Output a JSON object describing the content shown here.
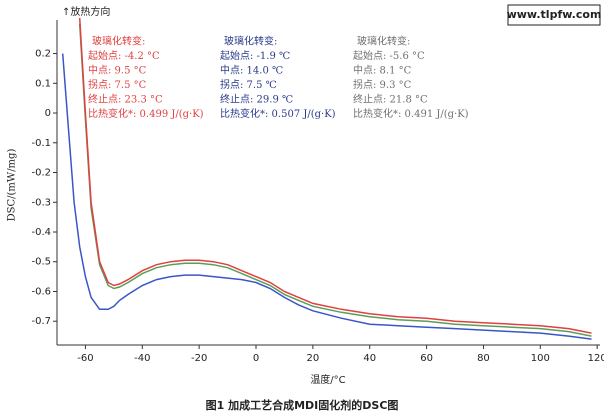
{
  "chart_data": {
    "type": "line",
    "direction_label": "↑放热方向",
    "watermark": "www.tlpfw.com",
    "y_label": "DSC/(mW/mg)",
    "x_label": "温度/°C",
    "caption": "图1 加成工艺合成MDI固化剂的DSC图",
    "xlim": [
      -70,
      121
    ],
    "ylim": [
      -0.78,
      0.37
    ],
    "xticks": [
      -60,
      -40,
      -20,
      0,
      20,
      40,
      60,
      80,
      100,
      120
    ],
    "yticks": [
      0.2,
      0.1,
      0,
      -0.1,
      -0.2,
      -0.3,
      -0.4,
      -0.5,
      -0.6,
      -0.7
    ],
    "grid": false,
    "x": [
      -68,
      -66,
      -64,
      -62,
      -60,
      -58,
      -55,
      -52,
      -50,
      -48,
      -45,
      -40,
      -35,
      -30,
      -25,
      -20,
      -15,
      -10,
      -5,
      0,
      5,
      10,
      15,
      20,
      30,
      40,
      50,
      60,
      70,
      80,
      90,
      100,
      110,
      118
    ],
    "series": [
      {
        "color": "#3a55c8",
        "values": [
          0.2,
          -0.05,
          -0.3,
          -0.45,
          -0.55,
          -0.62,
          -0.66,
          -0.66,
          -0.65,
          -0.63,
          -0.61,
          -0.58,
          -0.56,
          -0.55,
          -0.545,
          -0.545,
          -0.55,
          -0.555,
          -0.56,
          -0.57,
          -0.59,
          -0.62,
          -0.645,
          -0.665,
          -0.69,
          -0.71,
          -0.715,
          -0.72,
          -0.725,
          -0.73,
          -0.735,
          -0.74,
          -0.75,
          -0.76
        ]
      },
      {
        "color": "#5a9e5a",
        "values": [
          null,
          null,
          null,
          0.3,
          -0.02,
          -0.32,
          -0.51,
          -0.58,
          -0.59,
          -0.585,
          -0.57,
          -0.54,
          -0.52,
          -0.51,
          -0.505,
          -0.505,
          -0.51,
          -0.52,
          -0.54,
          -0.56,
          -0.58,
          -0.61,
          -0.63,
          -0.65,
          -0.67,
          -0.685,
          -0.695,
          -0.7,
          -0.71,
          -0.715,
          -0.72,
          -0.725,
          -0.735,
          -0.75
        ]
      },
      {
        "color": "#e04040",
        "values": [
          null,
          null,
          null,
          0.32,
          0.0,
          -0.3,
          -0.5,
          -0.57,
          -0.58,
          -0.575,
          -0.56,
          -0.53,
          -0.51,
          -0.5,
          -0.495,
          -0.495,
          -0.5,
          -0.51,
          -0.53,
          -0.55,
          -0.57,
          -0.6,
          -0.62,
          -0.64,
          -0.66,
          -0.675,
          -0.685,
          -0.69,
          -0.7,
          -0.705,
          -0.71,
          -0.715,
          -0.725,
          -0.74
        ]
      }
    ],
    "annotations": [
      {
        "color": "#e04040",
        "lines": [
          "玻璃化转变:",
          "起始点: -4.2 °C",
          "中点: 9.5 °C",
          "拐点: 7.5 °C",
          "终止点: 23.3 °C",
          "比热变化*: 0.499 J/(g·K)"
        ]
      },
      {
        "color": "#2a3a8a",
        "lines": [
          "玻璃化转变:",
          "起始点: -1.9 ℃",
          "中点: 14.0 ℃",
          "拐点: 7.5 ℃",
          "终止点: 29.9 ℃",
          "比热变化*: 0.507 J/(g·K)"
        ]
      },
      {
        "color": "#707070",
        "lines": [
          "玻璃化转变:",
          "起始点: -5.6 °C",
          "中点: 8.1 °C",
          "拐点: 9.3 °C",
          "终止点: 21.8 °C",
          "比热变化*: 0.491 J/(g·K)"
        ]
      }
    ]
  }
}
